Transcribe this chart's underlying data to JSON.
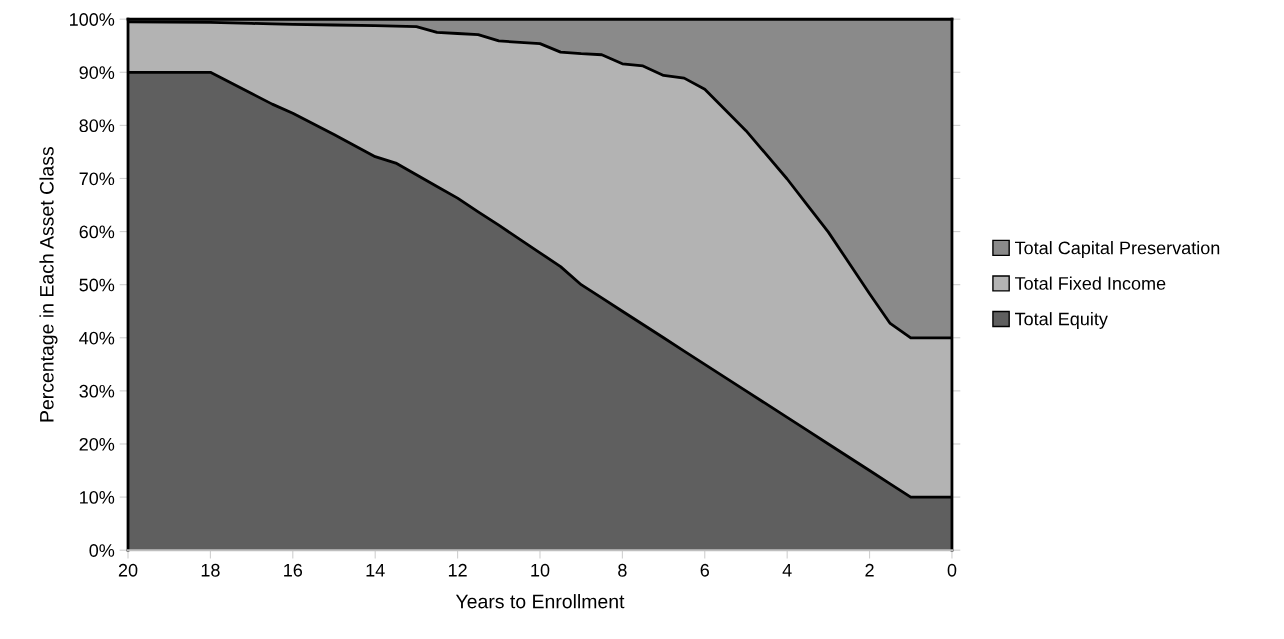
{
  "chart_data": {
    "type": "area",
    "stacked": true,
    "xlabel": "Years to Enrollment",
    "ylabel": "Percentage in Each Asset Class",
    "x": [
      20,
      18,
      17,
      16.5,
      16,
      15,
      14,
      13.5,
      13,
      12.5,
      12,
      11.5,
      11,
      10,
      9.5,
      9,
      8.5,
      8,
      7.5,
      7,
      6.5,
      6,
      5,
      4,
      3.5,
      3,
      2,
      1.5,
      1,
      0
    ],
    "series": [
      {
        "name": "Total Equity",
        "color": "#5f5f5f",
        "values": [
          90,
          90,
          86,
          84,
          82.3,
          78.3,
          74.1,
          72.9,
          70.7,
          68.5,
          66.3,
          63.7,
          61.2,
          56,
          53.4,
          50,
          47.5,
          45,
          42.5,
          40,
          37.5,
          35,
          30,
          25,
          22.5,
          20,
          15,
          12.5,
          10,
          10
        ]
      },
      {
        "name": "Total Fixed Income",
        "color": "#b3b3b3",
        "values": [
          9.5,
          9.4,
          13.2,
          15.1,
          16.7,
          20.6,
          24.7,
          25.8,
          27.9,
          29.0,
          31.0,
          33.4,
          34.7,
          39.4,
          40.4,
          43.5,
          45.8,
          46.6,
          48.7,
          49.4,
          51.4,
          51.8,
          49,
          44.9,
          42.4,
          39.9,
          33.3,
          30.2,
          30,
          30
        ]
      },
      {
        "name": "Total Capital Preservation",
        "color": "#8a8a8a",
        "values": [
          0.5,
          0.6,
          0.8,
          0.9,
          1.0,
          1.1,
          1.2,
          1.3,
          1.4,
          2.5,
          2.7,
          2.9,
          4.1,
          4.6,
          6.2,
          6.5,
          6.7,
          8.4,
          8.8,
          10.6,
          11.1,
          13.2,
          21,
          30.1,
          35.1,
          40.1,
          51.7,
          57.3,
          60,
          60
        ]
      }
    ],
    "xlim": [
      20,
      0
    ],
    "xticks": [
      20,
      18,
      16,
      14,
      12,
      10,
      8,
      6,
      4,
      2,
      0
    ],
    "ylim": [
      0,
      100
    ],
    "yticks": [
      {
        "value": 0,
        "label": "0%"
      },
      {
        "value": 10,
        "label": "10%"
      },
      {
        "value": 20,
        "label": "20%"
      },
      {
        "value": 30,
        "label": "30%"
      },
      {
        "value": 40,
        "label": "40%"
      },
      {
        "value": 50,
        "label": "50%"
      },
      {
        "value": 60,
        "label": "60%"
      },
      {
        "value": 70,
        "label": "70%"
      },
      {
        "value": 80,
        "label": "80%"
      },
      {
        "value": 90,
        "label": "90%"
      },
      {
        "value": 100,
        "label": "100%"
      }
    ],
    "legend": "right"
  }
}
